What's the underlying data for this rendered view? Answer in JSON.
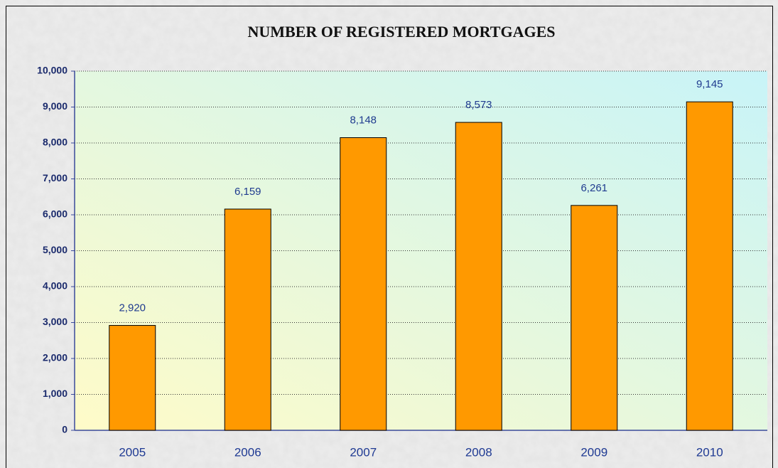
{
  "chart_data": {
    "type": "bar",
    "title": "NUMBER OF REGISTERED MORTGAGES",
    "categories": [
      "2005",
      "2006",
      "2007",
      "2008",
      "2009",
      "2010"
    ],
    "values": [
      2920,
      6159,
      8148,
      8573,
      6261,
      9145
    ],
    "value_labels": [
      "2,920",
      "6,159",
      "8,148",
      "8,573",
      "6,261",
      "9,145"
    ],
    "color": "#ff9900",
    "ylim": [
      0,
      10000
    ],
    "yticks": [
      0,
      {
        "value": 1000,
        "label": "1,000"
      },
      {
        "value": 2000,
        "label": "2,000"
      },
      {
        "value": 3000,
        "label": "3,000"
      },
      {
        "value": 4000,
        "label": "4,000"
      },
      {
        "value": 5000,
        "label": "5,000"
      },
      {
        "value": 6000,
        "label": "6,000"
      },
      {
        "value": 7000,
        "label": "7,000"
      },
      {
        "value": 8000,
        "label": "8,000"
      },
      {
        "value": 9000,
        "label": "9,000"
      },
      {
        "value": 10000,
        "label": "10,000"
      }
    ],
    "grid": true
  }
}
